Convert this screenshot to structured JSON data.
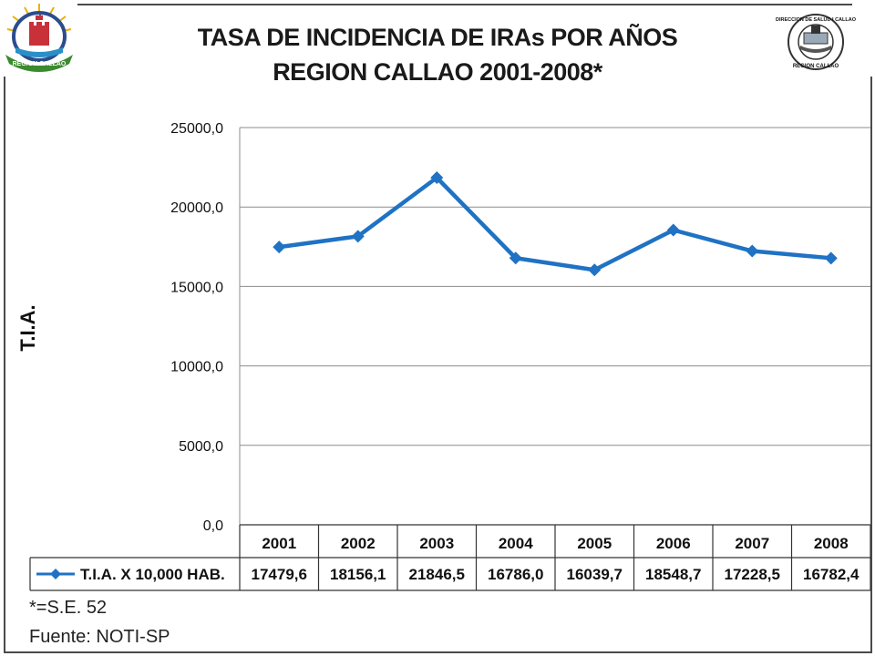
{
  "title_line1": "TASA DE INCIDENCIA DE IRAs POR AÑOS",
  "title_line2": "REGION CALLAO 2001-2008*",
  "logos": {
    "left": {
      "name": "region-callao-emblem",
      "text": "REGION CALLAO"
    },
    "right": {
      "name": "direccion-salud-callao-seal",
      "text_top": "DIRECCION DE SALUD I CALLAO",
      "text_bottom": "REGION CALLAO"
    }
  },
  "chart_data": {
    "type": "line",
    "ylabel": "T.I.A.",
    "ylim": [
      0,
      25000
    ],
    "yticks": [
      "0,0",
      "5000,0",
      "10000,0",
      "15000,0",
      "20000,0",
      "25000,0"
    ],
    "ytick_values": [
      0,
      5000,
      10000,
      15000,
      20000,
      25000
    ],
    "grid": true,
    "categories": [
      "2001",
      "2002",
      "2003",
      "2004",
      "2005",
      "2006",
      "2007",
      "2008"
    ],
    "series": [
      {
        "name": "T.I.A. X 10,000 HAB.",
        "color": "#1f72c4",
        "values": [
          17479.6,
          18156.1,
          21846.5,
          16786.0,
          16039.7,
          18548.7,
          17228.5,
          16782.4
        ],
        "labels": [
          "17479,6",
          "18156,1",
          "21846,5",
          "16786,0",
          "16039,7",
          "18548,7",
          "17228,5",
          "16782,4"
        ]
      }
    ],
    "data_table": true
  },
  "footnote": "*=S.E. 52",
  "source": "Fuente: NOTI-SP"
}
